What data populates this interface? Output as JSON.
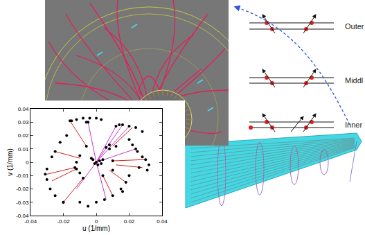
{
  "chart_data": {
    "type": "scatter",
    "xlabel": "u (1/mm)",
    "ylabel": "v (1/mm)",
    "xlim": [
      -0.04,
      0.04
    ],
    "ylim": [
      -0.04,
      0.04
    ],
    "xticks": [
      -0.04,
      -0.02,
      0,
      0.02,
      0.04
    ],
    "yticks": [
      -0.04,
      -0.03,
      -0.02,
      -0.01,
      0,
      0.01,
      0.02,
      0.03,
      0.04
    ],
    "grid": false,
    "series": [
      {
        "type": "line",
        "color": "#d62020",
        "line_style": "solid",
        "x": [
          -0.027,
          -0.012,
          null,
          -0.02,
          -0.008,
          null,
          0.018,
          0.008,
          null,
          0.03,
          0.01,
          null,
          -0.025,
          -0.01,
          null,
          0.022,
          0.01,
          null,
          -0.016,
          -0.006,
          null,
          0.01,
          0.004,
          null,
          -0.03,
          -0.013,
          null,
          0.028,
          0.012
        ],
        "y": [
          -0.014,
          -0.005,
          null,
          -0.03,
          -0.012,
          null,
          -0.015,
          -0.006,
          null,
          0.002,
          0.001,
          null,
          0.008,
          0.003,
          null,
          0.026,
          0.012,
          null,
          0.031,
          0.012,
          null,
          -0.025,
          -0.01,
          null,
          -0.009,
          -0.004,
          null,
          -0.004,
          -0.002
        ]
      },
      {
        "type": "line",
        "color": "#cc33cc",
        "line_style": "solid",
        "x": [
          0,
          0.02,
          null,
          0,
          0.016,
          null,
          0,
          0.012,
          null,
          0,
          -0.005,
          null,
          0,
          -0.012,
          null,
          0,
          0.024,
          null,
          0,
          0.006
        ],
        "y": [
          0,
          0.027,
          null,
          0,
          0.028,
          null,
          0,
          0.027,
          null,
          0,
          0.03,
          null,
          0,
          -0.02,
          null,
          0,
          0.01,
          null,
          0,
          -0.028
        ]
      },
      {
        "type": "scatter",
        "marker": "circle",
        "color": "#000000",
        "x": [
          -0.016,
          -0.012,
          -0.008,
          -0.004,
          0,
          0.003,
          0.012,
          0.016,
          0.02,
          0.024,
          0.028,
          0.02,
          0.022,
          0.025,
          0.028,
          0.03,
          0.032,
          0.031,
          -0.03,
          -0.031,
          -0.03,
          -0.028,
          -0.025,
          -0.02,
          -0.025,
          -0.027,
          -0.022,
          -0.018,
          -0.01,
          -0.005,
          0,
          0.005,
          0.01,
          0.015,
          0.018,
          0.02,
          0,
          0.002,
          -0.002,
          0.001,
          -0.001,
          0.003,
          -0.003,
          0.004,
          -0.01,
          -0.012,
          -0.01,
          0.008,
          0.01,
          -0.006,
          0.006,
          -0.012,
          -0.008,
          0.01,
          0.004,
          -0.013,
          -0.006,
          0.012,
          0.008,
          0.024,
          -0.005,
          -0.015,
          0.026,
          0.016,
          -0.02,
          0.014
        ],
        "y": [
          0.031,
          0.032,
          0.033,
          0.033,
          0.033,
          0.032,
          0.027,
          0.028,
          0.027,
          0.026,
          0.023,
          0.017,
          0.013,
          0.008,
          0.004,
          0.002,
          -0.002,
          -0.006,
          -0.005,
          -0.009,
          -0.013,
          -0.02,
          -0.025,
          -0.03,
          0.008,
          0.004,
          0.015,
          0.02,
          -0.03,
          -0.033,
          -0.03,
          -0.028,
          -0.025,
          -0.02,
          -0.015,
          -0.01,
          0,
          0.001,
          0.002,
          -0.002,
          -0.001,
          -0.001,
          0.003,
          0.002,
          0.005,
          0,
          -0.008,
          0.01,
          -0.006,
          0.012,
          0.011,
          -0.005,
          -0.012,
          0.001,
          -0.01,
          -0.004,
          0.03,
          0.012,
          0.013,
          0.01,
          0.03,
          0.031,
          -0.004,
          -0.022,
          -0.03,
          0.028
        ]
      }
    ]
  },
  "diagram": {
    "layers": [
      "Outer",
      "Middl",
      "Inner"
    ]
  }
}
